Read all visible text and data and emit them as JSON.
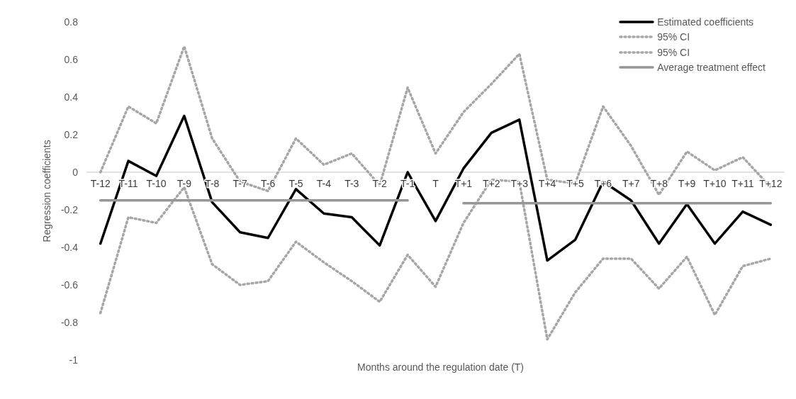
{
  "chart_data": {
    "type": "line",
    "xlabel": "Months around the regulation date (T)",
    "ylabel": "Regression coefficients",
    "categories": [
      "T-12",
      "T-11",
      "T-10",
      "T-9",
      "T-8",
      "T-7",
      "T-6",
      "T-5",
      "T-4",
      "T-3",
      "T-2",
      "T-1",
      "T",
      "T+1",
      "T+2",
      "T+3",
      "T+4",
      "T+5",
      "T+6",
      "T+7",
      "T+8",
      "T+9",
      "T+10",
      "T+11",
      "T+12"
    ],
    "series": [
      {
        "name": "Estimated coefficients",
        "color": "#000000",
        "line_style": "solid",
        "values": [
          -0.38,
          0.06,
          -0.02,
          0.3,
          -0.16,
          -0.32,
          -0.35,
          -0.09,
          -0.22,
          -0.24,
          -0.39,
          0.0,
          -0.26,
          0.02,
          0.21,
          0.28,
          -0.47,
          -0.36,
          -0.05,
          -0.15,
          -0.38,
          -0.17,
          -0.38,
          -0.21,
          -0.28
        ]
      },
      {
        "name": "95% CI",
        "color": "#a6a6a6",
        "line_style": "dotted",
        "values": [
          0.0,
          0.35,
          0.26,
          0.67,
          0.18,
          -0.05,
          -0.1,
          0.18,
          0.04,
          0.1,
          -0.07,
          0.45,
          0.1,
          0.32,
          0.47,
          0.63,
          -0.04,
          -0.06,
          0.35,
          0.14,
          -0.12,
          0.11,
          0.01,
          0.08,
          -0.08
        ]
      },
      {
        "name": "95% CI",
        "color": "#a6a6a6",
        "line_style": "dotted",
        "values": [
          -0.75,
          -0.24,
          -0.27,
          -0.08,
          -0.49,
          -0.6,
          -0.58,
          -0.37,
          -0.48,
          -0.58,
          -0.69,
          -0.44,
          -0.61,
          -0.27,
          -0.04,
          -0.05,
          -0.89,
          -0.64,
          -0.46,
          -0.46,
          -0.62,
          -0.45,
          -0.76,
          -0.5,
          -0.46
        ]
      },
      {
        "name": "Average treatment effect",
        "color": "#969696",
        "line_style": "solid",
        "values": [
          -0.15,
          -0.15,
          -0.15,
          -0.15,
          -0.15,
          -0.15,
          -0.15,
          -0.15,
          -0.15,
          -0.15,
          -0.15,
          -0.15,
          null,
          -0.165,
          -0.165,
          -0.165,
          -0.165,
          -0.165,
          -0.165,
          -0.165,
          -0.165,
          -0.165,
          -0.165,
          -0.165,
          -0.165
        ]
      }
    ],
    "ylim": [
      -1,
      0.8
    ],
    "yticks": [
      -1,
      -0.8,
      -0.6,
      -0.4,
      -0.2,
      0,
      0.2,
      0.4,
      0.6,
      0.8
    ],
    "grid": false,
    "legend": "top right",
    "marker": "none"
  }
}
